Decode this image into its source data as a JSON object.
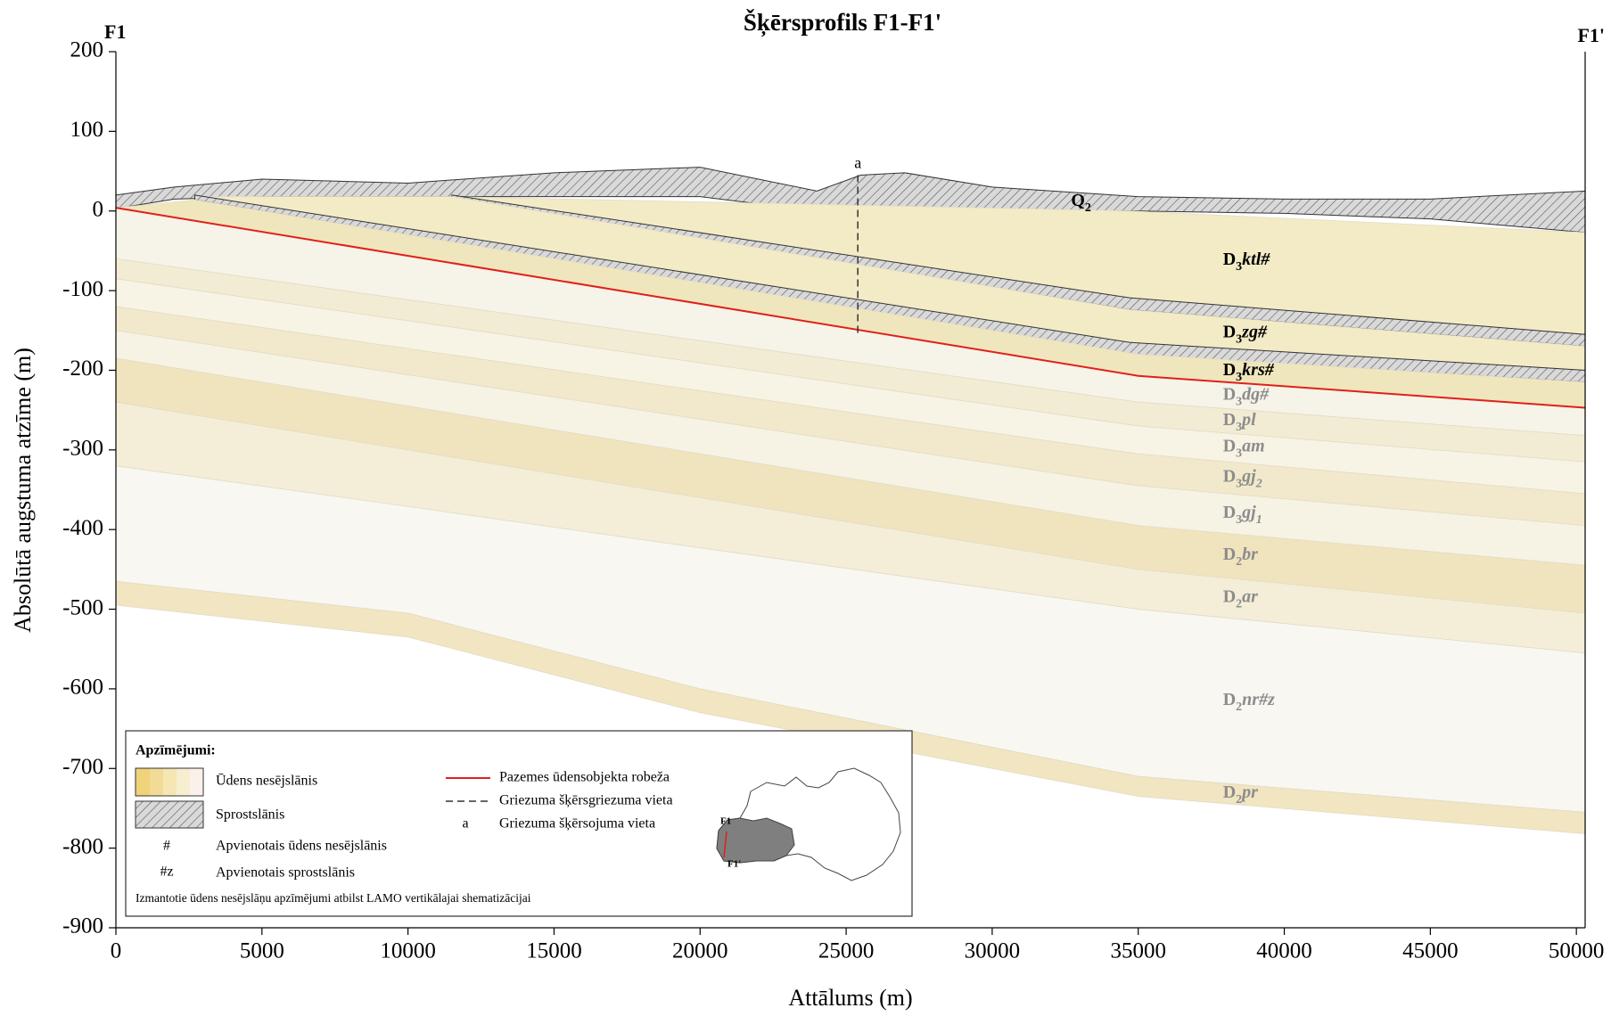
{
  "chart_data": {
    "type": "cross-section",
    "title": "Šķērsprofils F1-F1'",
    "left_label": "F1",
    "right_label": "F1'",
    "x_label": "Attālums (m)",
    "y_label": "Absolūtā augstuma atzīme (m)",
    "xlim": [
      0,
      50300
    ],
    "xticks": [
      0,
      5000,
      10000,
      15000,
      20000,
      25000,
      30000,
      35000,
      40000,
      45000,
      50000
    ],
    "ylim": [
      -900,
      200
    ],
    "yticks": [
      -900,
      -800,
      -700,
      -600,
      -500,
      -400,
      -300,
      -200,
      -100,
      0,
      100,
      200
    ],
    "hatch_color": "#595959",
    "layers": [
      {
        "label": [
          "Q",
          "2"
        ],
        "hatched": true,
        "color": "#d9d9d9",
        "label_color": "#000000",
        "x": [
          0,
          2000,
          5000,
          10000,
          15000,
          20000,
          24000,
          25500,
          27000,
          30000,
          35000,
          40000,
          45000,
          50300
        ],
        "top": [
          20,
          30,
          40,
          35,
          48,
          55,
          25,
          45,
          48,
          30,
          18,
          15,
          15,
          25
        ],
        "bottom": [
          3,
          15,
          18,
          18,
          18,
          18,
          0,
          0,
          0,
          0,
          0,
          -3,
          -10,
          -27
        ]
      },
      {
        "label": [
          "D",
          "3",
          "ktl#"
        ],
        "hatched": false,
        "color": "#f2ebc6",
        "label_color": "#000000",
        "x": [
          4000,
          11500,
          34700,
          50300
        ],
        "top": [
          18,
          18,
          0,
          -27
        ],
        "bottom": [
          18,
          18,
          -109,
          -155
        ]
      },
      {
        "hatched": true,
        "color": "#d9d9d9",
        "x": [
          11500,
          34700,
          50300
        ],
        "top": [
          20,
          -109,
          -155
        ],
        "bottom": [
          16,
          -124,
          -170
        ]
      },
      {
        "label": [
          "D",
          "3",
          "zg#"
        ],
        "hatched": false,
        "color": "#f2ebc6",
        "label_color": "#000000",
        "x": [
          2700,
          11500,
          34700,
          50300
        ],
        "top": [
          18,
          18,
          -124,
          -170
        ],
        "bottom": [
          20,
          -31,
          -165,
          -200
        ]
      },
      {
        "hatched": true,
        "color": "#d9d9d9",
        "x": [
          2700,
          34700,
          50300
        ],
        "top": [
          20,
          -165,
          -200
        ],
        "bottom": [
          14,
          -180,
          -215
        ]
      },
      {
        "label": [
          "D",
          "3",
          "krs#"
        ],
        "hatched": false,
        "color": "#f0e6bd",
        "label_color": "#000000",
        "x": [
          0,
          2700,
          35000,
          50300
        ],
        "top": [
          4,
          14,
          -180,
          -215
        ],
        "bottom": [
          4,
          -12,
          -207,
          -247
        ]
      },
      {
        "label": [
          "D",
          "3",
          "dg#"
        ],
        "hatched": false,
        "color": "#f6f3e8",
        "label_color": "#8c8c8c",
        "x": [
          0,
          35000,
          50300
        ],
        "top": [
          4,
          -207,
          -247
        ],
        "bottom": [
          -60,
          -240,
          -282
        ]
      },
      {
        "label": [
          "D",
          "3",
          "pl"
        ],
        "hatched": false,
        "color": "#f3ecd4",
        "label_color": "#8c8c8c",
        "x": [
          0,
          35000,
          50300
        ],
        "top": [
          -60,
          -240,
          -282
        ],
        "bottom": [
          -85,
          -270,
          -315
        ]
      },
      {
        "label": [
          "D",
          "3",
          "am"
        ],
        "hatched": false,
        "color": "#f7f3e5",
        "label_color": "#8c8c8c",
        "x": [
          0,
          35000,
          50300
        ],
        "top": [
          -85,
          -270,
          -315
        ],
        "bottom": [
          -120,
          -305,
          -355
        ]
      },
      {
        "label": [
          "D",
          "3",
          "gj",
          "2"
        ],
        "hatched": false,
        "color": "#f2e9cc",
        "label_color": "#8c8c8c",
        "x": [
          0,
          35000,
          50300
        ],
        "top": [
          -120,
          -305,
          -355
        ],
        "bottom": [
          -150,
          -345,
          -395
        ]
      },
      {
        "label": [
          "D",
          "3",
          "gj",
          "1"
        ],
        "hatched": false,
        "color": "#f6f2e4",
        "label_color": "#8c8c8c",
        "x": [
          0,
          35000,
          50300
        ],
        "top": [
          -150,
          -345,
          -395
        ],
        "bottom": [
          -185,
          -395,
          -445
        ]
      },
      {
        "label": [
          "D",
          "2",
          "br"
        ],
        "hatched": false,
        "color": "#f0e4bf",
        "label_color": "#8c8c8c",
        "x": [
          0,
          35000,
          50300
        ],
        "top": [
          -185,
          -395,
          -445
        ],
        "bottom": [
          -240,
          -450,
          -505
        ]
      },
      {
        "label": [
          "D",
          "2",
          "ar"
        ],
        "hatched": false,
        "color": "#f4eed8",
        "label_color": "#8c8c8c",
        "x": [
          0,
          35000,
          50300
        ],
        "top": [
          -240,
          -450,
          -505
        ],
        "bottom": [
          -320,
          -500,
          -555
        ]
      },
      {
        "label": [
          "D",
          "2",
          "nr#z"
        ],
        "hatched": false,
        "color": "#f8f7f2",
        "label_color": "#8c8c8c",
        "x": [
          0,
          10000,
          20000,
          35000,
          50300
        ],
        "top": [
          -320,
          -371,
          -423,
          -500,
          -555
        ],
        "bottom": [
          -465,
          -505,
          -600,
          -710,
          -755
        ]
      },
      {
        "label": [
          "D",
          "2",
          "pr"
        ],
        "hatched": false,
        "color": "#f1e5c2",
        "label_color": "#8c8c8c",
        "x": [
          0,
          10000,
          20000,
          35000,
          50300
        ],
        "top": [
          -465,
          -505,
          -600,
          -710,
          -755
        ],
        "bottom": [
          -495,
          -535,
          -630,
          -735,
          -782
        ]
      }
    ],
    "boundary": {
      "name": "Pazemes ūdensobjekta robeža",
      "color": "#e0201b",
      "x": [
        0,
        35000,
        50300
      ],
      "y": [
        4,
        -207,
        -247
      ]
    },
    "section_marker": {
      "name": "Griezuma šķērsgriezuma vieta",
      "label": "a",
      "point_name": "Griezuma šķērsojuma vieta",
      "x": 25400,
      "y": [
        45,
        -153
      ]
    }
  },
  "legend": {
    "title": "Apzīmējumi:",
    "items": [
      {
        "label": "Ūdens nesējslānis"
      },
      {
        "label": "Sprostslānis"
      },
      {
        "symbol": "#",
        "label": "Apvienotais ūdens nesējslānis"
      },
      {
        "symbol": "#z",
        "label": "Apvienotais sprostslānis"
      }
    ],
    "note": "Izmantotie ūdens nesējslāņu apzīmējumi atbilst LAMO vertikālajai shematizācijai"
  }
}
